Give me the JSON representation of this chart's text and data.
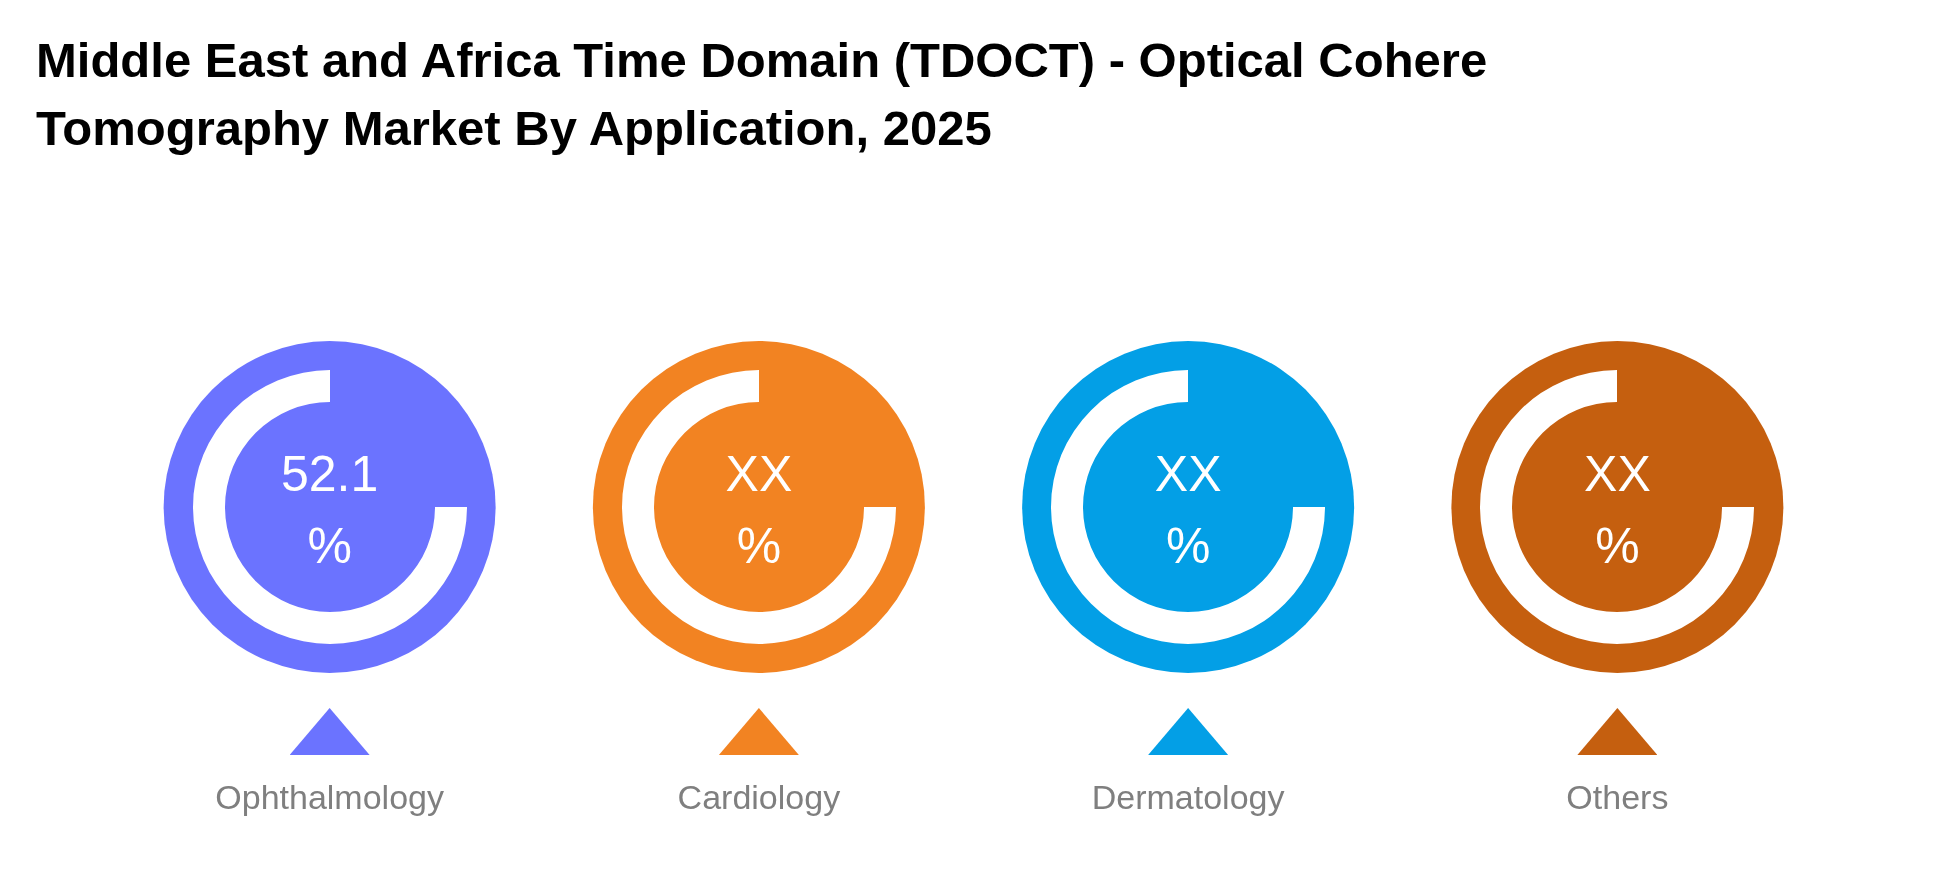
{
  "chart_data": {
    "type": "other",
    "title": "Middle East and Africa Time Domain (TDOCT) - Optical Cohere Tomography Market By Application, 2025",
    "categories": [
      "Ophthalmology",
      "Cardiology",
      "Dermatology",
      "Others"
    ],
    "values": [
      52.1,
      null,
      null,
      null
    ],
    "value_labels": [
      "52.1\n%",
      "XX\n%",
      "XX\n%",
      "XX\n%"
    ],
    "colors": [
      "#6b73ff",
      "#f28322",
      "#039fe6",
      "#c55f0f"
    ],
    "legend": false
  }
}
